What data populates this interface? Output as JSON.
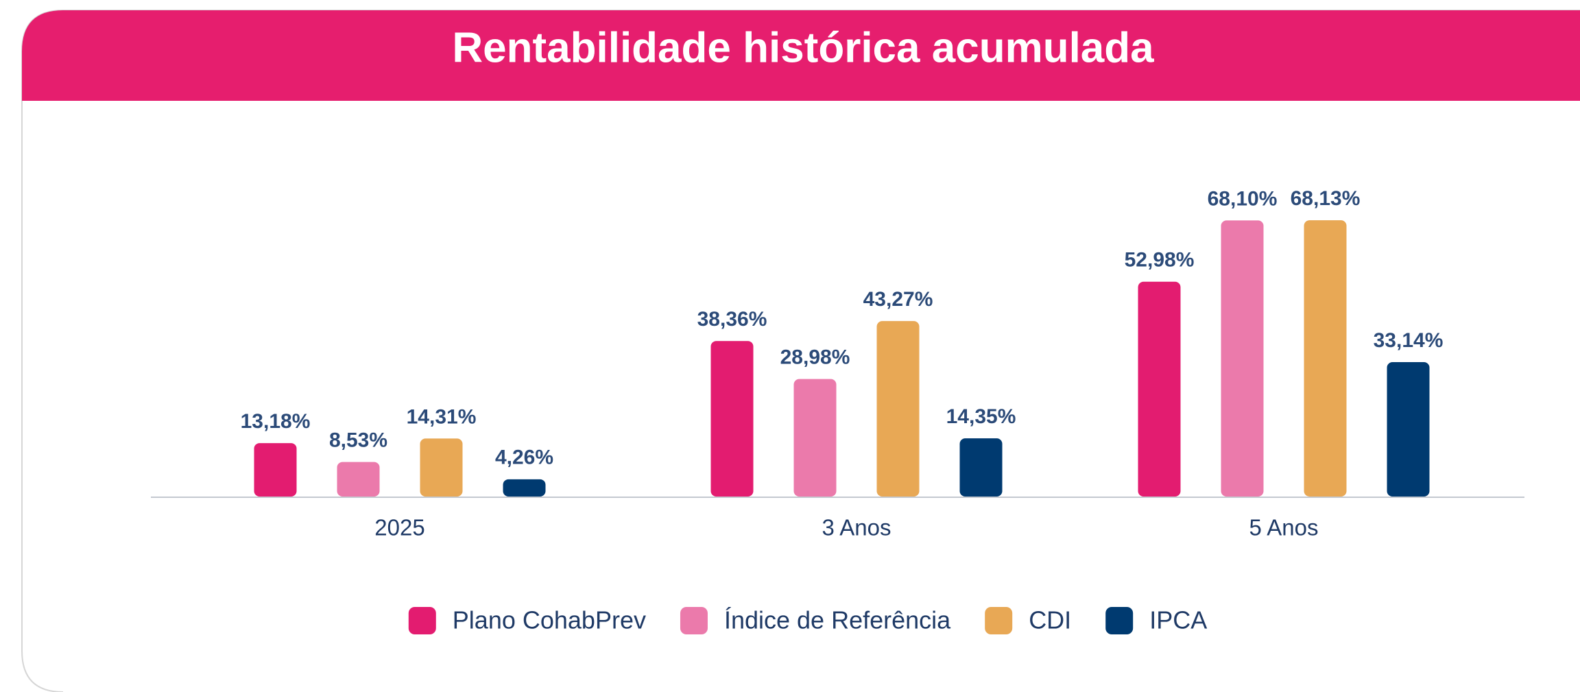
{
  "chart_data": {
    "type": "bar",
    "title": "Rentabilidade histórica acumulada",
    "categories": [
      "2025",
      "3 Anos",
      "5 Anos"
    ],
    "series": [
      {
        "name": "Plano CohabPrev",
        "color": "#e31c70",
        "values": [
          13.18,
          38.36,
          52.98
        ],
        "value_labels": [
          "13,18%",
          "38,36%",
          "52,98%"
        ]
      },
      {
        "name": "Índice de Referência",
        "color": "#eb7aab",
        "values": [
          8.53,
          28.98,
          68.1
        ],
        "value_labels": [
          "8,53%",
          "28,98%",
          "68,10%"
        ]
      },
      {
        "name": "CDI",
        "color": "#e8a855",
        "values": [
          14.31,
          43.27,
          68.13
        ],
        "value_labels": [
          "14,31%",
          "43,27%",
          "68,13%"
        ]
      },
      {
        "name": "IPCA",
        "color": "#003a70",
        "values": [
          4.26,
          14.35,
          33.14
        ],
        "value_labels": [
          "4,26%",
          "14,35%",
          "33,14%"
        ]
      }
    ],
    "ylim": [
      0,
      80
    ],
    "legend": "bottom"
  }
}
